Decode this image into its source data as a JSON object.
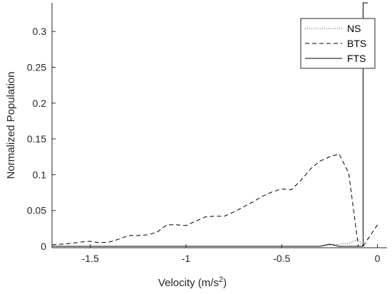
{
  "chart_data": {
    "type": "line",
    "xlabel": "Velocity (m/s",
    "xlabel_sup": "2",
    "xlabel_close": ")",
    "ylabel": "Normalized Population",
    "xlim": [
      -1.7,
      0.05
    ],
    "ylim": [
      -0.002,
      0.34
    ],
    "xticks": [
      -1.5,
      -1,
      -0.5,
      0
    ],
    "xtick_labels": [
      "-1.5",
      "-1",
      "-0.5",
      "0"
    ],
    "yticks": [
      0,
      0.05,
      0.1,
      0.15,
      0.2,
      0.25,
      0.3
    ],
    "ytick_labels": [
      "0",
      "0.05",
      "0.1",
      "0.15",
      "0.2",
      "0.25",
      "0.3"
    ],
    "grid": false,
    "legend_position": "top-right",
    "series": [
      {
        "name": "NS",
        "style": "dotted",
        "color": "#000000",
        "x": [
          -1.7,
          -1.0,
          -0.5,
          -0.3,
          -0.25,
          -0.2,
          -0.15,
          -0.1,
          -0.075
        ],
        "y": [
          0.0,
          0.0,
          0.0,
          0.0,
          0.002,
          0.003,
          0.004,
          0.01,
          0.0
        ]
      },
      {
        "name": "BTS",
        "style": "dashed",
        "color": "#000000",
        "x": [
          -1.7,
          -1.6,
          -1.55,
          -1.5,
          -1.45,
          -1.4,
          -1.35,
          -1.3,
          -1.25,
          -1.2,
          -1.15,
          -1.1,
          -1.05,
          -1.0,
          -0.95,
          -0.9,
          -0.85,
          -0.8,
          -0.75,
          -0.7,
          -0.65,
          -0.6,
          -0.55,
          -0.5,
          -0.45,
          -0.4,
          -0.35,
          -0.3,
          -0.25,
          -0.2,
          -0.15,
          -0.1,
          -0.075,
          -0.05,
          -0.025,
          0.0
        ],
        "y": [
          0.002,
          0.004,
          0.006,
          0.007,
          0.005,
          0.006,
          0.01,
          0.015,
          0.015,
          0.016,
          0.02,
          0.03,
          0.03,
          0.029,
          0.035,
          0.041,
          0.042,
          0.042,
          0.048,
          0.055,
          0.062,
          0.07,
          0.076,
          0.08,
          0.079,
          0.092,
          0.108,
          0.119,
          0.125,
          0.129,
          0.102,
          0.0,
          0.0,
          0.01,
          0.02,
          0.03
        ]
      },
      {
        "name": "FTS",
        "style": "solid",
        "color": "#000000",
        "x": [
          -1.7,
          -0.3,
          -0.25,
          -0.2,
          -0.1,
          -0.075,
          -0.075,
          -0.05
        ],
        "y": [
          0.0,
          0.0,
          0.003,
          0.0,
          0.0,
          0.0,
          0.34,
          0.34
        ]
      }
    ]
  }
}
